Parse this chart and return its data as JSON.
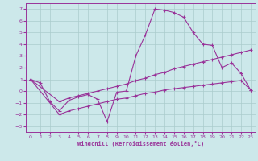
{
  "xlabel": "Windchill (Refroidissement éolien,°C)",
  "background_color": "#cce8ea",
  "grid_color": "#aacccc",
  "line_color": "#993399",
  "xlim": [
    -0.5,
    23.5
  ],
  "ylim": [
    -3.5,
    7.5
  ],
  "xticks": [
    0,
    1,
    2,
    3,
    4,
    5,
    6,
    7,
    8,
    9,
    10,
    11,
    12,
    13,
    14,
    15,
    16,
    17,
    18,
    19,
    20,
    21,
    22,
    23
  ],
  "yticks": [
    -3,
    -2,
    -1,
    0,
    1,
    2,
    3,
    4,
    5,
    6,
    7
  ],
  "line1_x": [
    0,
    1,
    2,
    3,
    4,
    5,
    6,
    7,
    8,
    9,
    10,
    11,
    12,
    13,
    14,
    15,
    16,
    17,
    18,
    19,
    20,
    21,
    22,
    23
  ],
  "line1_y": [
    1.0,
    0.7,
    -0.9,
    -1.7,
    -0.8,
    -0.5,
    -0.3,
    -0.7,
    -2.6,
    -0.1,
    0.0,
    3.0,
    4.8,
    7.0,
    6.9,
    6.7,
    6.3,
    5.0,
    4.0,
    3.9,
    2.0,
    2.4,
    1.5,
    0.1
  ],
  "line2_x": [
    0,
    3,
    4,
    5,
    6,
    7,
    8,
    9,
    10,
    11,
    12,
    13,
    14,
    15,
    16,
    17,
    18,
    19,
    20,
    21,
    22,
    23
  ],
  "line2_y": [
    1.0,
    -0.9,
    -0.6,
    -0.4,
    -0.2,
    0.0,
    0.2,
    0.4,
    0.6,
    0.9,
    1.1,
    1.4,
    1.6,
    1.9,
    2.1,
    2.3,
    2.5,
    2.7,
    2.9,
    3.1,
    3.3,
    3.5
  ],
  "line3_x": [
    0,
    3,
    4,
    5,
    6,
    7,
    8,
    9,
    10,
    11,
    12,
    13,
    14,
    15,
    16,
    17,
    18,
    19,
    20,
    21,
    22,
    23
  ],
  "line3_y": [
    1.0,
    -2.0,
    -1.7,
    -1.5,
    -1.3,
    -1.1,
    -0.9,
    -0.7,
    -0.6,
    -0.4,
    -0.2,
    -0.1,
    0.1,
    0.2,
    0.3,
    0.4,
    0.5,
    0.6,
    0.7,
    0.8,
    0.9,
    0.1
  ]
}
